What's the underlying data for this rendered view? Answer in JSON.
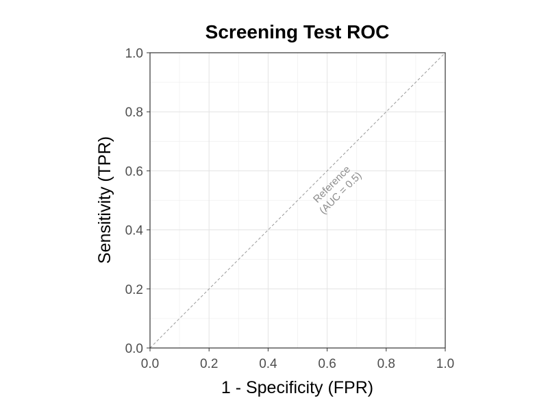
{
  "chart_data": {
    "type": "line",
    "title": "Screening Test ROC",
    "xlabel": "1 - Specificity (FPR)",
    "ylabel": "Sensitivity (TPR)",
    "xlim": [
      0,
      1
    ],
    "ylim": [
      0,
      1
    ],
    "x_ticks": [
      "0.0",
      "0.2",
      "0.4",
      "0.6",
      "0.8",
      "1.0"
    ],
    "y_ticks": [
      "0.0",
      "0.2",
      "0.4",
      "0.6",
      "0.8",
      "1.0"
    ],
    "x_tick_values": [
      0,
      0.2,
      0.4,
      0.6,
      0.8,
      1.0
    ],
    "y_tick_values": [
      0,
      0.2,
      0.4,
      0.6,
      0.8,
      1.0
    ],
    "grid": true,
    "series": [
      {
        "x": [
          0,
          1
        ],
        "y": [
          0,
          1
        ],
        "style": "dashed",
        "color": "#999999"
      }
    ],
    "annotations": [
      {
        "lines": [
          "Reference",
          "(AUC = 0.5)"
        ],
        "x": 0.63,
        "y": 0.54,
        "color": "#8c8c8c"
      }
    ]
  }
}
